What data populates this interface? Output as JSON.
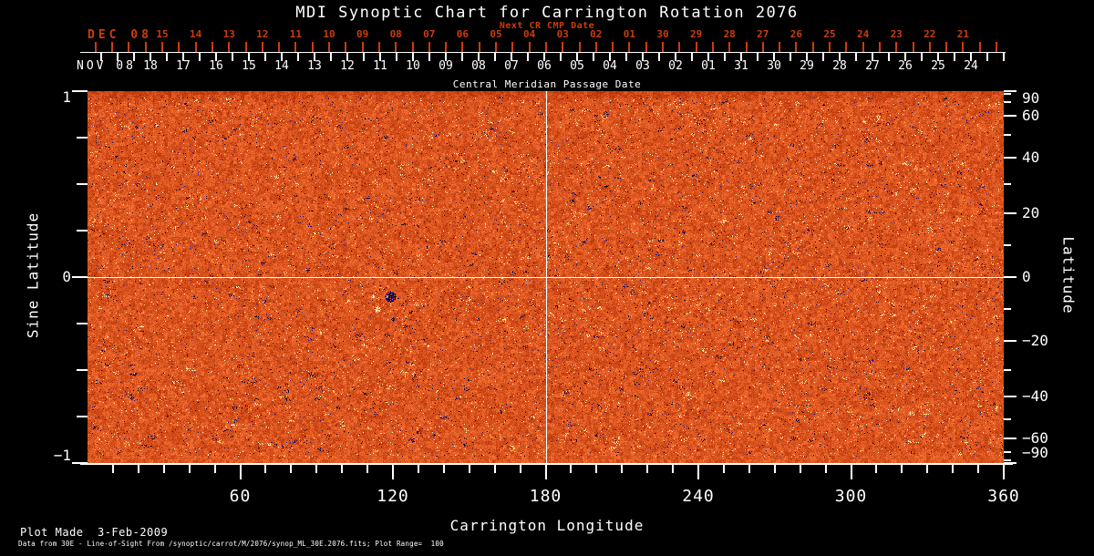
{
  "colors": {
    "background": "#000000",
    "foreground": "#ffffff",
    "next_cr_red": "#cc3c0e"
  },
  "footer": {
    "line1": "Plot Made  3-Feb-2009",
    "line2": "Data from 30E - Line-of-Sight From /synoptic/carrot/M/2076/synop_ML_30E.2076.fits; Plot Range=  100"
  },
  "chart_data": {
    "type": "heatmap",
    "title": "MDI Synoptic Chart for Carrington Rotation 2076",
    "description": "Full-surface solar line-of-sight magnetogram synoptic map for Carrington rotation 2076. Mottled orange-red field with scattered dark-blue/black (negative polarity) and cream-yellow (positive polarity) magnetic speckles; white reference crosshair at longitude 180 and latitude 0.",
    "plot_range": 100,
    "x_axis": {
      "label": "Carrington Longitude",
      "min": 0,
      "max": 360,
      "major_ticks": [
        60,
        120,
        180,
        240,
        300,
        360
      ],
      "minor_tick_step": 10
    },
    "y_left": {
      "label": "Sine Latitude",
      "min": -1,
      "max": 1,
      "labeled_ticks": [
        1,
        0,
        -1
      ],
      "minor_tick_step": 0.25
    },
    "y_right": {
      "label": "Latitude",
      "scale": "sine",
      "labeled_ticks": [
        90,
        60,
        40,
        20,
        0,
        -20,
        -40,
        -60,
        -90
      ],
      "minor_ticks": [
        80,
        70,
        50,
        30,
        10,
        -10,
        -30,
        -50,
        -70,
        -80
      ]
    },
    "top_axis_next_cr": {
      "title": "Next CR CMP Date",
      "month": "DEC 08",
      "days": [
        "15",
        "14",
        "13",
        "12",
        "11",
        "10",
        "09",
        "08",
        "07",
        "06",
        "05",
        "04",
        "03",
        "02",
        "01",
        "30",
        "29",
        "28",
        "27",
        "26",
        "25",
        "24",
        "23",
        "22",
        "21"
      ]
    },
    "top_axis_cmp": {
      "title": "Central Meridian Passage Date",
      "month": "NOV 08",
      "days": [
        "18",
        "17",
        "16",
        "15",
        "14",
        "13",
        "12",
        "11",
        "10",
        "09",
        "08",
        "07",
        "06",
        "05",
        "04",
        "03",
        "02",
        "01",
        "31",
        "30",
        "29",
        "28",
        "27",
        "26",
        "25",
        "24"
      ]
    },
    "reference_lines": {
      "longitude": 180,
      "latitude": 0
    },
    "features": [
      {
        "kind": "dark",
        "longitude": 119,
        "latitude": -6,
        "size": 6,
        "note": "prominent dark active region"
      },
      {
        "kind": "dark",
        "longitude": 120,
        "latitude": -13,
        "size": 2
      },
      {
        "kind": "bright",
        "longitude": 114,
        "latitude": -10,
        "size": 3
      },
      {
        "kind": "bright",
        "longitude": 112,
        "latitude": -6,
        "size": 2
      }
    ],
    "palette": {
      "base_low": "#b42e06",
      "base_high": "#ff7a38",
      "negative_navy": "#1c1cb4",
      "negative_black": "#080612",
      "positive_cream": "#fff6be",
      "positive_gold": "#ffc861"
    }
  }
}
